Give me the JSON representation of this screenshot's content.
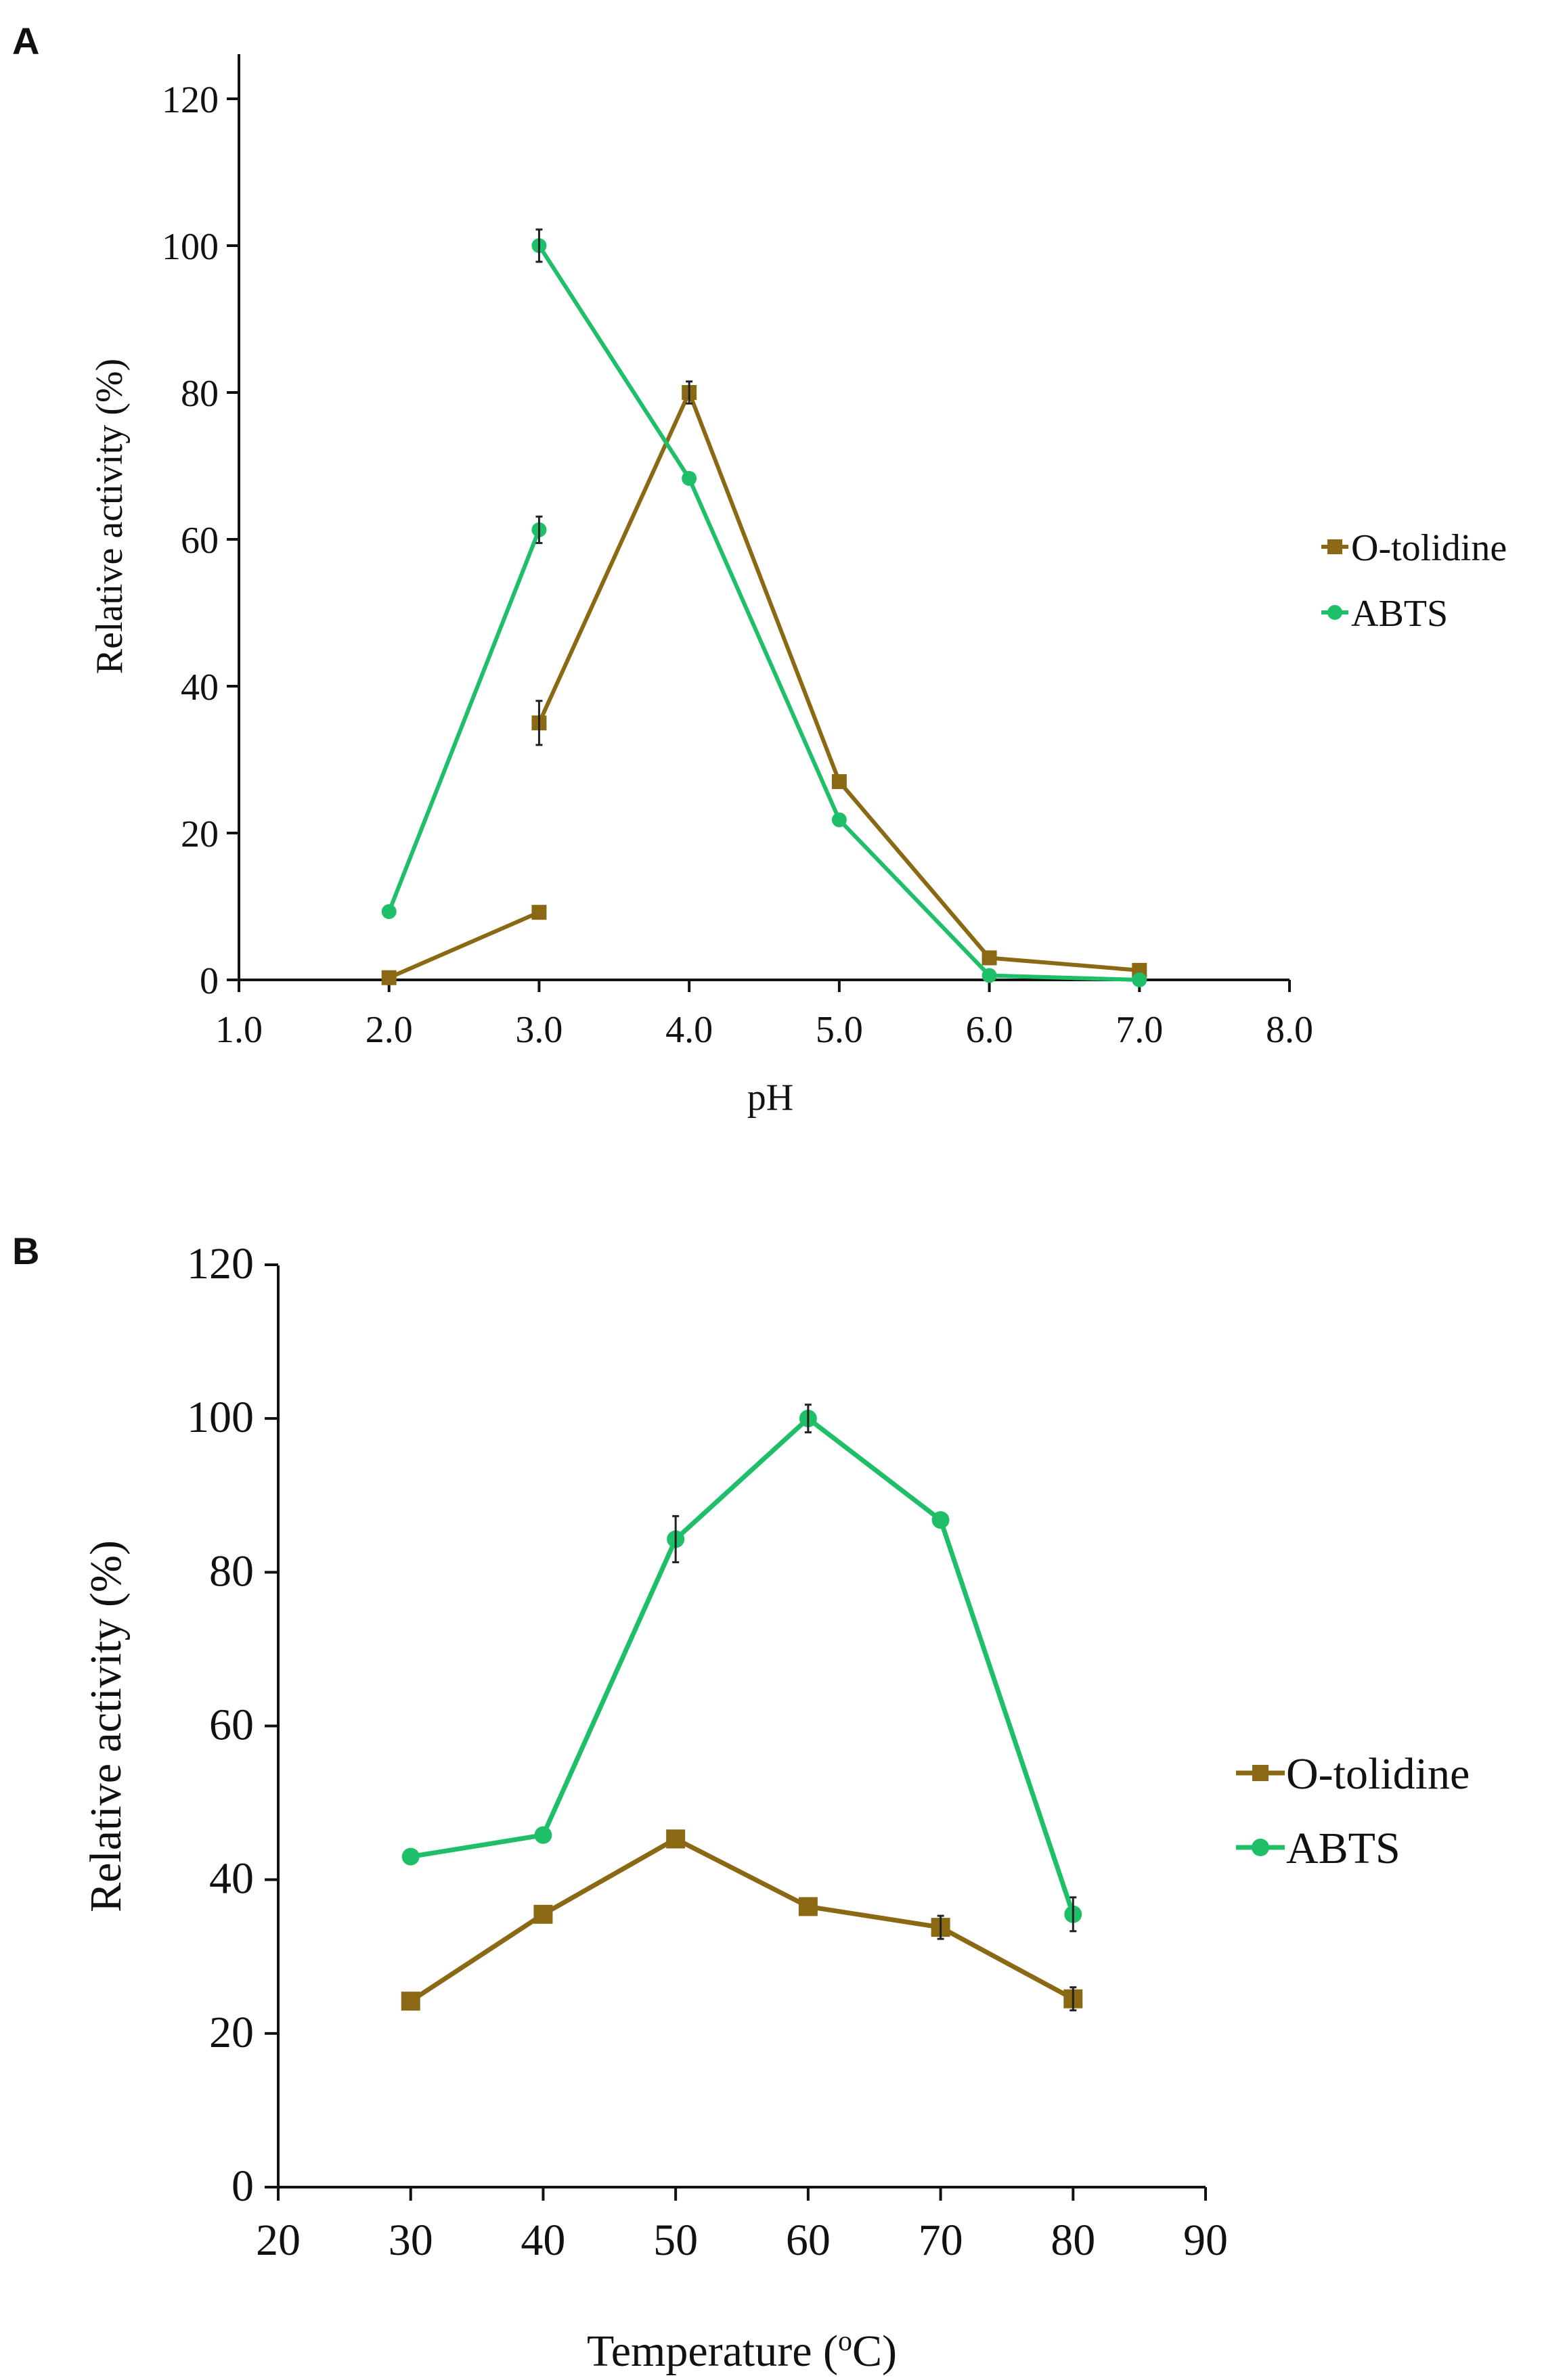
{
  "figure": {
    "panels": [
      {
        "letter": "A"
      },
      {
        "letter": "B"
      }
    ]
  },
  "colors": {
    "otolidine": "#8B6914",
    "abts": "#1FBF6A",
    "errorbar": "#222222",
    "axis": "#111111"
  },
  "chart_data": [
    {
      "panel": "A",
      "type": "line",
      "title": "",
      "xlabel": "pH",
      "ylabel": "Relative activity (%)",
      "xlim": [
        1.0,
        8.0
      ],
      "ylim": [
        0,
        120
      ],
      "x_ticks": [
        "1.0",
        "2.0",
        "3.0",
        "4.0",
        "5.0",
        "6.0",
        "7.0",
        "8.0"
      ],
      "y_ticks": [
        "0",
        "20",
        "40",
        "60",
        "80",
        "100",
        "120"
      ],
      "x_tick_values": [
        1,
        2,
        3,
        4,
        5,
        6,
        7,
        8
      ],
      "y_tick_values": [
        0,
        20,
        40,
        60,
        80,
        100,
        120
      ],
      "legend": [
        "O-tolidine",
        "ABTS"
      ],
      "legend_position": "right",
      "series": [
        {
          "name": "O-tolidine",
          "marker": "square",
          "segments": [
            {
              "x": [
                2.0,
                3.0
              ],
              "y": [
                0.3,
                9.2
              ],
              "err": [
                0,
                0
              ]
            },
            {
              "x": [
                3.0,
                4.0,
                5.0,
                6.0,
                7.0
              ],
              "y": [
                35.0,
                80.0,
                27.0,
                3.0,
                1.3
              ],
              "err": [
                3.0,
                1.5,
                0,
                0,
                0
              ]
            }
          ]
        },
        {
          "name": "ABTS",
          "marker": "circle",
          "segments": [
            {
              "x": [
                2.0,
                3.0
              ],
              "y": [
                9.3,
                61.3
              ],
              "err": [
                0,
                1.8
              ]
            },
            {
              "x": [
                3.0,
                4.0,
                5.0,
                6.0,
                7.0
              ],
              "y": [
                100.0,
                68.3,
                21.8,
                0.6,
                0.0
              ],
              "err": [
                2.2,
                0,
                0,
                0,
                0
              ]
            }
          ]
        }
      ]
    },
    {
      "panel": "B",
      "type": "line",
      "title": "",
      "xlabel": "Temperature (oC)",
      "xlabel_parts": {
        "before": "Temperature (",
        "sup": "o",
        "after": "C)"
      },
      "ylabel": "Relative activity (%)",
      "xlim": [
        20,
        90
      ],
      "ylim": [
        0,
        120
      ],
      "x_ticks": [
        "20",
        "30",
        "40",
        "50",
        "60",
        "70",
        "80",
        "90"
      ],
      "y_ticks": [
        "0",
        "20",
        "40",
        "60",
        "80",
        "100",
        "120"
      ],
      "x_tick_values": [
        20,
        30,
        40,
        50,
        60,
        70,
        80,
        90
      ],
      "y_tick_values": [
        0,
        20,
        40,
        60,
        80,
        100,
        120
      ],
      "legend": [
        "O-tolidine",
        "ABTS"
      ],
      "legend_position": "right",
      "series": [
        {
          "name": "O-tolidine",
          "marker": "square",
          "segments": [
            {
              "x": [
                30,
                40,
                50,
                60,
                70,
                80
              ],
              "y": [
                24.2,
                35.5,
                45.3,
                36.5,
                33.8,
                24.5
              ],
              "err": [
                0,
                0,
                0,
                0,
                1.5,
                1.5
              ]
            }
          ]
        },
        {
          "name": "ABTS",
          "marker": "circle",
          "segments": [
            {
              "x": [
                30,
                40,
                50,
                60,
                70,
                80
              ],
              "y": [
                43.0,
                45.8,
                84.3,
                100.0,
                86.8,
                35.5
              ],
              "err": [
                0,
                0,
                3.0,
                1.8,
                0,
                2.2
              ]
            }
          ]
        }
      ]
    }
  ]
}
